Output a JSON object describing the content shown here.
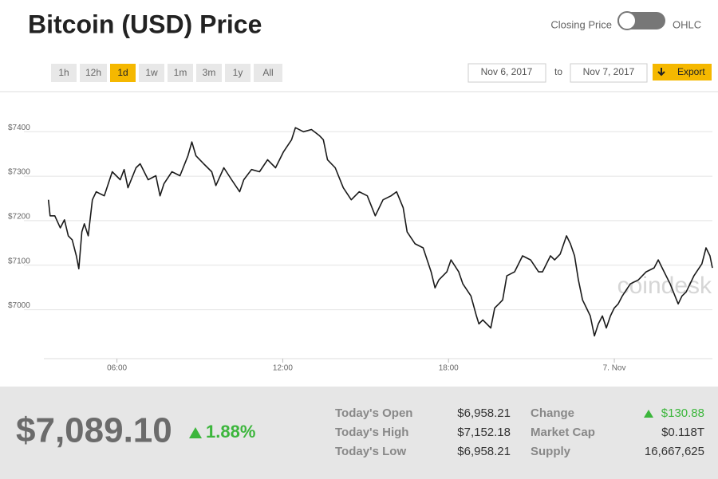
{
  "header": {
    "title": "Bitcoin (USD) Price",
    "toggle_left": "Closing Price",
    "toggle_right": "OHLC"
  },
  "controls": {
    "ranges": [
      "1h",
      "12h",
      "1d",
      "1w",
      "1m",
      "3m",
      "1y",
      "All"
    ],
    "active_range": "1d",
    "date_from": "Nov 6, 2017",
    "to": "to",
    "date_to": "Nov 7, 2017",
    "export": "Export"
  },
  "chart_data": {
    "type": "line",
    "watermark": "coindesk",
    "color": "#1a1a1a",
    "grid": true,
    "xlim": [
      3.5,
      27.55
    ],
    "xticks": [
      {
        "value": 6,
        "label": "06:00"
      },
      {
        "value": 12,
        "label": "12:00"
      },
      {
        "value": 18,
        "label": "18:00"
      },
      {
        "value": 24,
        "label": "7. Nov"
      }
    ],
    "ylim": [
      6890,
      7490
    ],
    "yticks": [
      {
        "value": 7000,
        "label": "$7000"
      },
      {
        "value": 7100,
        "label": "$7100"
      },
      {
        "value": 7200,
        "label": "$7200"
      },
      {
        "value": 7300,
        "label": "$7300"
      },
      {
        "value": 7400,
        "label": "$7400"
      }
    ],
    "x": [
      3.52,
      3.58,
      3.75,
      3.95,
      4.1,
      4.24,
      4.38,
      4.53,
      4.62,
      4.73,
      4.82,
      4.96,
      5.11,
      5.25,
      5.54,
      5.83,
      6.12,
      6.26,
      6.4,
      6.69,
      6.84,
      7.13,
      7.41,
      7.56,
      7.7,
      7.99,
      8.28,
      8.57,
      8.71,
      8.86,
      9.14,
      9.43,
      9.58,
      9.87,
      10.15,
      10.44,
      10.59,
      10.87,
      11.16,
      11.45,
      11.74,
      12.03,
      12.32,
      12.46,
      12.75,
      13.04,
      13.33,
      13.47,
      13.62,
      13.9,
      14.19,
      14.48,
      14.77,
      15.06,
      15.35,
      15.63,
      15.92,
      16.12,
      16.36,
      16.5,
      16.79,
      17.08,
      17.37,
      17.51,
      17.65,
      17.94,
      18.09,
      18.37,
      18.52,
      18.81,
      19.01,
      19.1,
      19.24,
      19.53,
      19.67,
      19.82,
      19.96,
      20.11,
      20.39,
      20.68,
      20.97,
      21.26,
      21.4,
      21.69,
      21.84,
      22.04,
      22.27,
      22.41,
      22.56,
      22.7,
      22.85,
      22.99,
      23.13,
      23.28,
      23.42,
      23.57,
      23.71,
      23.86,
      24.0,
      24.14,
      24.29,
      24.58,
      24.87,
      25.15,
      25.44,
      25.59,
      25.73,
      26.02,
      26.31,
      26.45,
      26.6,
      26.88,
      27.17,
      27.32,
      27.46,
      27.55
    ],
    "series": [
      {
        "name": "Closing Price",
        "values": [
          7247,
          7211,
          7211,
          7184,
          7202,
          7166,
          7157,
          7121,
          7092,
          7175,
          7193,
          7166,
          7247,
          7265,
          7256,
          7310,
          7292,
          7315,
          7274,
          7319,
          7328,
          7292,
          7301,
          7256,
          7283,
          7310,
          7301,
          7346,
          7377,
          7346,
          7328,
          7310,
          7279,
          7319,
          7292,
          7265,
          7292,
          7315,
          7310,
          7337,
          7319,
          7355,
          7382,
          7409,
          7400,
          7405,
          7391,
          7382,
          7337,
          7319,
          7274,
          7247,
          7265,
          7256,
          7211,
          7247,
          7256,
          7265,
          7229,
          7175,
          7148,
          7139,
          7085,
          7049,
          7067,
          7085,
          7112,
          7085,
          7058,
          7031,
          6986,
          6968,
          6977,
          6959,
          7004,
          7013,
          7022,
          7076,
          7085,
          7121,
          7112,
          7085,
          7085,
          7121,
          7112,
          7125,
          7166,
          7148,
          7121,
          7067,
          7022,
          7004,
          6986,
          6941,
          6968,
          6986,
          6959,
          6986,
          7004,
          7013,
          7031,
          7058,
          7067,
          7085,
          7094,
          7112,
          7094,
          7058,
          7013,
          7031,
          7040,
          7076,
          7103,
          7139,
          7121,
          7094
        ]
      }
    ]
  },
  "summary": {
    "price": "$7,089.10",
    "change_pct": "1.88%",
    "rows": [
      [
        "Today's Open",
        "$6,958.21",
        "Change",
        "$130.88"
      ],
      [
        "Today's High",
        "$7,152.18",
        "Market Cap",
        "$0.118T"
      ],
      [
        "Today's Low",
        "$6,958.21",
        "Supply",
        "16,667,625"
      ]
    ]
  }
}
